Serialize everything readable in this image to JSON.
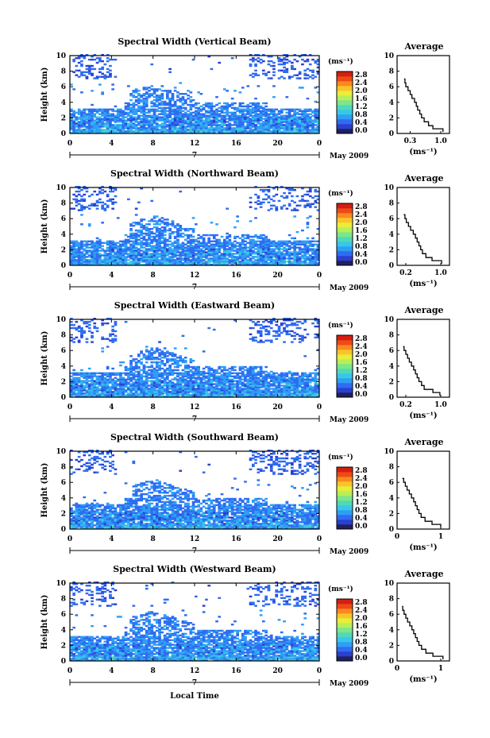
{
  "figure": {
    "x_label": "Local Time",
    "date_label": "May 2009",
    "date_tick": "7"
  },
  "colorbar": {
    "unit": "(ms⁻¹)",
    "ticks": [
      "0.0",
      "0.4",
      "0.8",
      "1.2",
      "1.6",
      "2.0",
      "2.4",
      "2.8"
    ],
    "colors": [
      "#202060",
      "#2b3fd0",
      "#2f6cf0",
      "#2f9ef5",
      "#37c7e8",
      "#4fd9b8",
      "#7de68a",
      "#b8ef58",
      "#e8ee3a",
      "#f9c42a",
      "#f98a1e",
      "#ee4a16",
      "#d41e12"
    ]
  },
  "chart_data": [
    {
      "type": "heatmap",
      "title": "Spectral Width (Vertical Beam)",
      "xlabel": "",
      "ylabel": "Height (km)",
      "x_ticks": [
        "0",
        "4",
        "8",
        "12",
        "16",
        "20",
        "0"
      ],
      "y_ticks": [
        "0",
        "2",
        "4",
        "6",
        "8",
        "10"
      ],
      "xlim": [
        0,
        24
      ],
      "ylim": [
        0,
        10
      ],
      "profile": {
        "title": "Average",
        "xlabel": "(ms⁻¹)",
        "x_ticks": [
          "0.3",
          "1.0"
        ],
        "x_tick_vals": [
          0.3,
          1.0
        ],
        "xlim": [
          0.0,
          1.2
        ],
        "y_ticks": [
          "0",
          "2",
          "4",
          "6",
          "8",
          "10"
        ],
        "ylim": [
          0,
          10
        ],
        "height": [
          0.2,
          0.6,
          1.0,
          1.5,
          2.0,
          2.5,
          3.0,
          3.5,
          4.0,
          4.5,
          5.0,
          5.5,
          6.0,
          6.5,
          7.0
        ],
        "value": [
          1.05,
          0.82,
          0.72,
          0.62,
          0.56,
          0.52,
          0.47,
          0.44,
          0.4,
          0.34,
          0.3,
          0.25,
          0.2,
          0.18,
          0.16
        ]
      }
    },
    {
      "type": "heatmap",
      "title": "Spectral Width (Northward Beam)",
      "xlabel": "",
      "ylabel": "Height (km)",
      "x_ticks": [
        "0",
        "4",
        "8",
        "12",
        "16",
        "20",
        "0"
      ],
      "y_ticks": [
        "0",
        "2",
        "4",
        "6",
        "8",
        "10"
      ],
      "xlim": [
        0,
        24
      ],
      "ylim": [
        0,
        10
      ],
      "profile": {
        "title": "Average",
        "xlabel": "(ms⁻¹)",
        "x_ticks": [
          "0.2",
          "1.0"
        ],
        "x_tick_vals": [
          0.2,
          1.0
        ],
        "xlim": [
          0.0,
          1.2
        ],
        "y_ticks": [
          "0",
          "2",
          "4",
          "6",
          "8",
          "10"
        ],
        "ylim": [
          0,
          10
        ],
        "height": [
          0.2,
          0.6,
          1.0,
          1.5,
          2.0,
          2.5,
          3.0,
          3.5,
          4.0,
          4.5,
          5.0,
          5.5,
          6.0,
          6.5
        ],
        "value": [
          1.02,
          0.8,
          0.66,
          0.58,
          0.54,
          0.5,
          0.46,
          0.42,
          0.37,
          0.31,
          0.26,
          0.21,
          0.18,
          0.15
        ]
      }
    },
    {
      "type": "heatmap",
      "title": "Spectral Width (Eastward Beam)",
      "xlabel": "",
      "ylabel": "Height (km)",
      "x_ticks": [
        "0",
        "4",
        "8",
        "12",
        "16",
        "20",
        "0"
      ],
      "y_ticks": [
        "0",
        "2",
        "4",
        "6",
        "8",
        "10"
      ],
      "xlim": [
        0,
        24
      ],
      "ylim": [
        0,
        10
      ],
      "profile": {
        "title": "Average",
        "xlabel": "(ms⁻¹)",
        "x_ticks": [
          "0.2",
          "1.0"
        ],
        "x_tick_vals": [
          0.2,
          1.0
        ],
        "xlim": [
          0.0,
          1.2
        ],
        "y_ticks": [
          "0",
          "2",
          "4",
          "6",
          "8",
          "10"
        ],
        "ylim": [
          0,
          10
        ],
        "height": [
          0.2,
          0.6,
          1.0,
          1.5,
          2.0,
          2.5,
          3.0,
          3.5,
          4.0,
          4.5,
          5.0,
          5.5,
          6.0,
          6.5
        ],
        "value": [
          0.98,
          0.82,
          0.62,
          0.56,
          0.5,
          0.46,
          0.42,
          0.38,
          0.33,
          0.28,
          0.24,
          0.2,
          0.16,
          0.14
        ]
      }
    },
    {
      "type": "heatmap",
      "title": "Spectral Width (Southward Beam)",
      "xlabel": "",
      "ylabel": "Height (km)",
      "x_ticks": [
        "0",
        "4",
        "8",
        "12",
        "16",
        "20",
        "0"
      ],
      "y_ticks": [
        "0",
        "2",
        "4",
        "6",
        "8",
        "10"
      ],
      "xlim": [
        0,
        24
      ],
      "ylim": [
        0,
        10
      ],
      "profile": {
        "title": "Average",
        "xlabel": "(ms⁻¹)",
        "x_ticks": [
          "0",
          "1"
        ],
        "x_tick_vals": [
          0,
          1
        ],
        "xlim": [
          0.0,
          1.2
        ],
        "y_ticks": [
          "0",
          "2",
          "4",
          "6",
          "8",
          "10"
        ],
        "ylim": [
          0,
          10
        ],
        "height": [
          0.2,
          0.6,
          1.0,
          1.5,
          2.0,
          2.5,
          3.0,
          3.5,
          4.0,
          4.5,
          5.0,
          5.5,
          6.0,
          6.5
        ],
        "value": [
          1.0,
          0.8,
          0.64,
          0.55,
          0.5,
          0.46,
          0.42,
          0.38,
          0.33,
          0.28,
          0.23,
          0.19,
          0.15,
          0.12
        ]
      }
    },
    {
      "type": "heatmap",
      "title": "Spectral Width (Westward Beam)",
      "xlabel": "",
      "ylabel": "Height (km)",
      "x_ticks": [
        "0",
        "4",
        "8",
        "12",
        "16",
        "20",
        "0"
      ],
      "y_ticks": [
        "0",
        "2",
        "4",
        "6",
        "8",
        "10"
      ],
      "xlim": [
        0,
        24
      ],
      "ylim": [
        0,
        10
      ],
      "profile": {
        "title": "Average",
        "xlabel": "(ms⁻¹)",
        "x_ticks": [
          "0",
          "1"
        ],
        "x_tick_vals": [
          0,
          1
        ],
        "xlim": [
          0.0,
          1.2
        ],
        "y_ticks": [
          "0",
          "2",
          "4",
          "6",
          "8",
          "10"
        ],
        "ylim": [
          0,
          10
        ],
        "height": [
          0.2,
          0.6,
          1.0,
          1.5,
          2.0,
          2.5,
          3.0,
          3.5,
          4.0,
          4.5,
          5.0,
          5.5,
          6.0,
          6.5,
          7.0
        ],
        "value": [
          1.05,
          0.82,
          0.66,
          0.56,
          0.5,
          0.46,
          0.42,
          0.38,
          0.34,
          0.29,
          0.24,
          0.2,
          0.16,
          0.13,
          0.11
        ]
      }
    }
  ]
}
